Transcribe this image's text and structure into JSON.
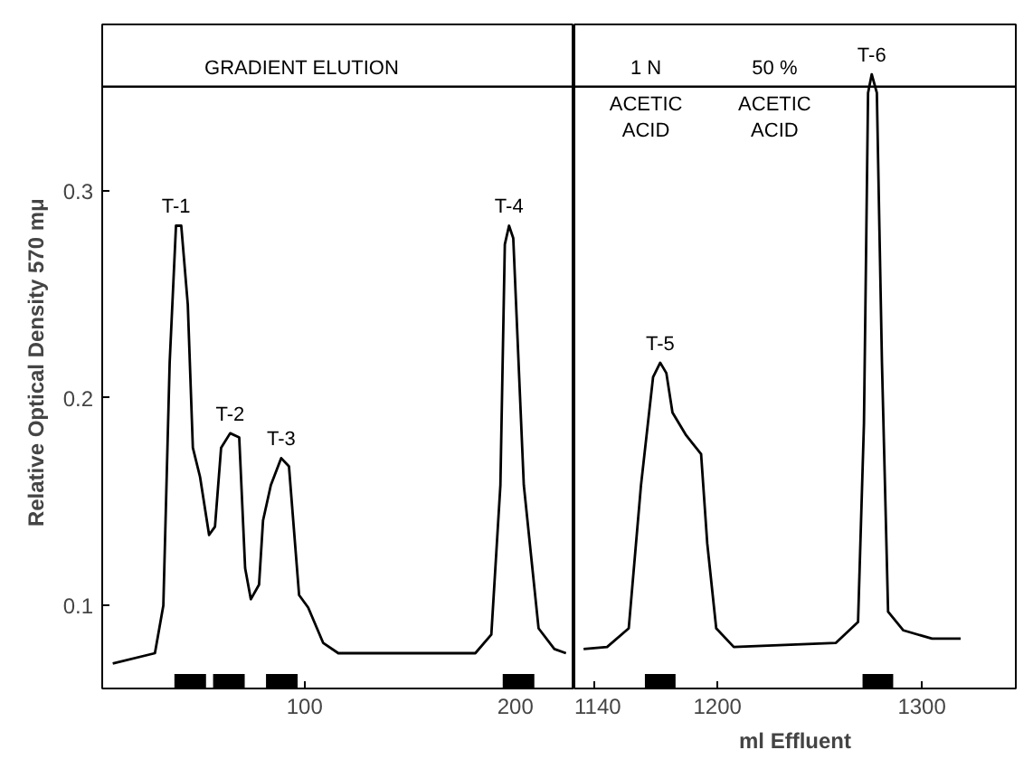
{
  "chart_data": [
    {
      "type": "line",
      "ylabel": "Relative  Optical Density  570 mμ",
      "xlim": [
        4,
        228
      ],
      "xticks": [
        100,
        200
      ],
      "ylim": [
        0.06,
        0.38
      ],
      "yticks": [
        0.1,
        0.2,
        0.3
      ],
      "grid": false,
      "series": [
        {
          "color": "#000000",
          "x": [
            9,
            29,
            33,
            36,
            39,
            41.5,
            44.6,
            47,
            50.4,
            54.7,
            57.5,
            60.4,
            64.7,
            69,
            71.8,
            74.5,
            78.4,
            80.3,
            84,
            88.9,
            92.6,
            97.4,
            101.7,
            108.8,
            116,
            181,
            188.6,
            192.9,
            195,
            197,
            199,
            204,
            211,
            218.5,
            224
          ],
          "values": [
            0.072,
            0.077,
            0.1,
            0.217,
            0.283,
            0.283,
            0.245,
            0.176,
            0.162,
            0.134,
            0.138,
            0.176,
            0.183,
            0.181,
            0.118,
            0.103,
            0.11,
            0.141,
            0.158,
            0.171,
            0.167,
            0.105,
            0.099,
            0.082,
            0.077,
            0.077,
            0.086,
            0.158,
            0.274,
            0.283,
            0.277,
            0.158,
            0.089,
            0.079,
            0.077
          ]
        },
        {
          "type": "bar",
          "color": "#000000",
          "x": [
            45.75,
            64.1,
            89.2,
            201.5
          ],
          "values": [
            0.007,
            0.007,
            0.007,
            0.007
          ],
          "base": [
            0.06,
            0.06,
            0.06,
            0.06
          ]
        }
      ],
      "annotations": [
        {
          "text": "T-1",
          "x": 39,
          "y": 0.283
        },
        {
          "text": "T-2",
          "x": 64.7,
          "y": 0.183
        },
        {
          "text": "T-3",
          "x": 88.9,
          "y": 0.171
        },
        {
          "text": "T-4",
          "x": 197,
          "y": 0.283
        },
        {
          "text": "GRADIENT  ELUTION",
          "x": 100,
          "y": 0.35
        }
      ],
      "ref_lines": [
        {
          "axis": "y",
          "value": 0.35,
          "color": "#000000"
        }
      ]
    },
    {
      "type": "line",
      "xlabel": "ml Effluent",
      "xlim": [
        1130,
        1346
      ],
      "xticks": [
        1140,
        1200,
        1300
      ],
      "ylim": [
        0.06,
        0.38
      ],
      "yticks": [
        0.1,
        0.2,
        0.3
      ],
      "grid": false,
      "tick_labels": "x",
      "series": [
        {
          "color": "#000000",
          "x": [
            1134.5,
            1146,
            1156.6,
            1162.6,
            1168.5,
            1172,
            1175,
            1178,
            1184.7,
            1192,
            1195,
            1199.4,
            1208,
            1258,
            1268.8,
            1271.7,
            1273.7,
            1275.5,
            1278,
            1280.5,
            1283.5,
            1291,
            1305,
            1319
          ],
          "values": [
            0.079,
            0.08,
            0.089,
            0.158,
            0.21,
            0.217,
            0.212,
            0.193,
            0.182,
            0.173,
            0.13,
            0.089,
            0.08,
            0.082,
            0.092,
            0.188,
            0.347,
            0.356,
            0.347,
            0.217,
            0.097,
            0.088,
            0.084,
            0.084
          ]
        },
        {
          "type": "bar",
          "color": "#000000",
          "x": [
            1172,
            1278.5
          ],
          "values": [
            0.007,
            0.007
          ],
          "base": [
            0.06,
            0.06
          ]
        }
      ],
      "annotations": [
        {
          "text": "T-5",
          "x": 1172,
          "y": 0.217
        },
        {
          "text": "T-6",
          "x": 1275.5,
          "y": 0.356
        },
        {
          "text": "1 N",
          "x": 1165,
          "y": 0.35
        },
        {
          "text": "ACETIC\nACID",
          "x": 1165,
          "y": 0.35
        },
        {
          "text": "50 %",
          "x": 1228,
          "y": 0.35
        },
        {
          "text": "ACETIC\nACID",
          "x": 1228,
          "y": 0.35
        }
      ],
      "ref_lines": [
        {
          "axis": "y",
          "value": 0.35,
          "color": "#000000"
        }
      ]
    }
  ]
}
